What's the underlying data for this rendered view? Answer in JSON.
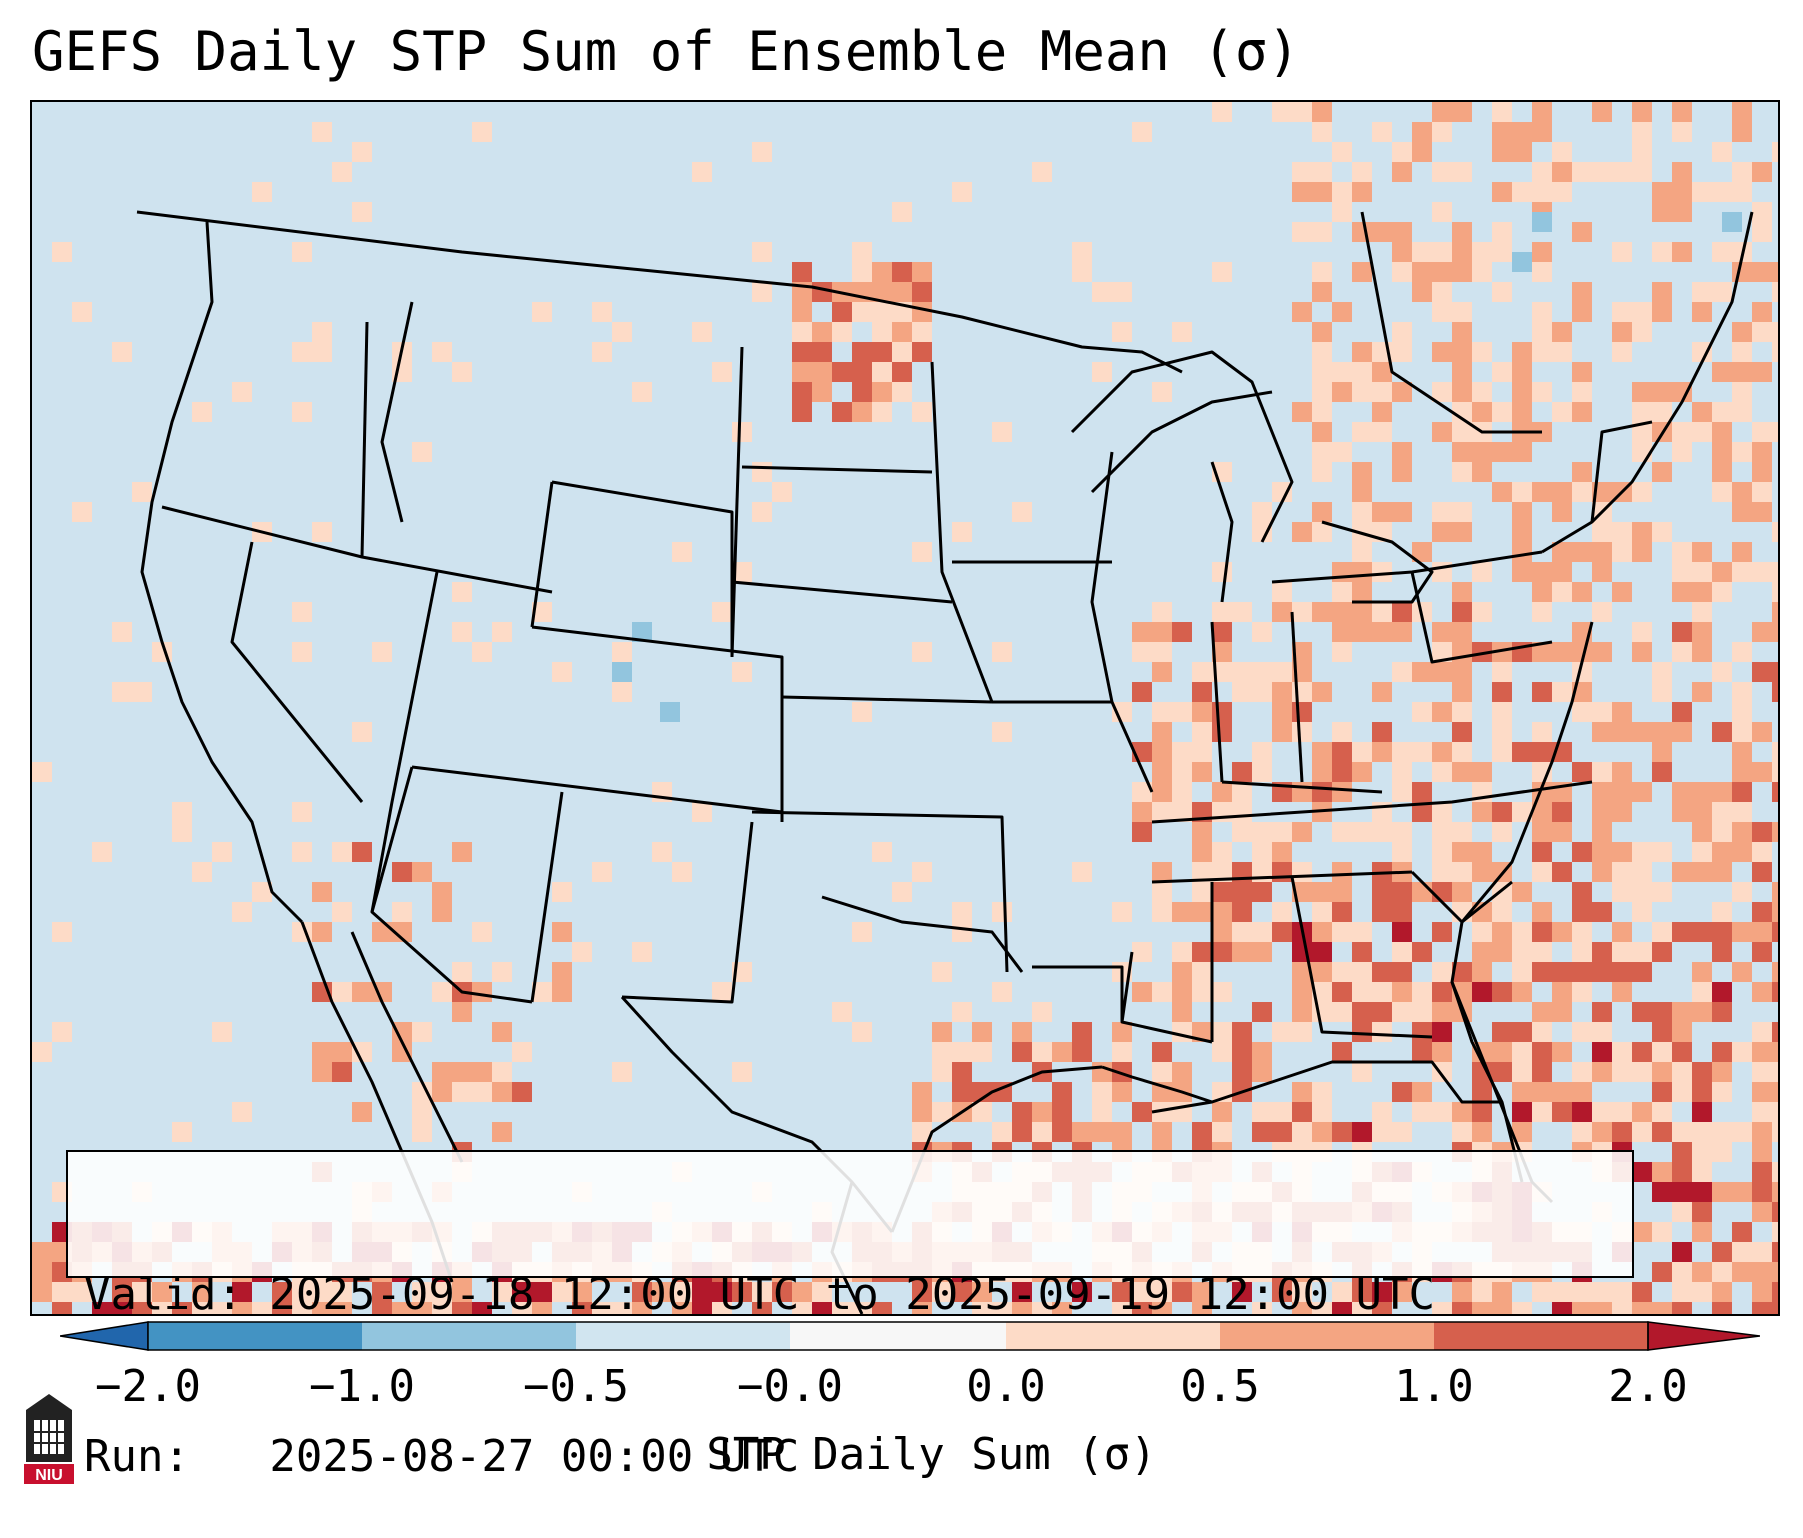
{
  "title": "GEFS Daily STP Sum of Ensemble Mean (σ)",
  "info": {
    "valid_line": "Valid: 2025-09-18 12:00 UTC to 2025-09-19 12:00 UTC",
    "run_line": "Run:   2025-08-27 00:00 UTC"
  },
  "colorbar": {
    "label": "STP Daily Sum (σ)",
    "ticks": [
      "−2.0",
      "−1.0",
      "−0.5",
      "−0.0",
      "0.0",
      "0.5",
      "1.0",
      "2.0"
    ],
    "colors": [
      "#2166ac",
      "#4393c3",
      "#92c5de",
      "#d1e5f0",
      "#f7f7f7",
      "#fddbc7",
      "#f4a582",
      "#d6604d",
      "#b2182b"
    ],
    "extend": "both"
  },
  "map": {
    "region": "CONUS",
    "projection": "Lambert Conformal",
    "background_color": "#cfe3ef",
    "outline_color": "#000000",
    "anomaly_levels": {
      "weak_positive": "#fddbc7",
      "moderate_positive": "#f4a582",
      "strong_positive": "#d6604d",
      "extreme_positive": "#b2182b",
      "weak_negative": "#92c5de"
    }
  },
  "logo": {
    "text": "NIU",
    "icon": "niu-logo-icon"
  }
}
